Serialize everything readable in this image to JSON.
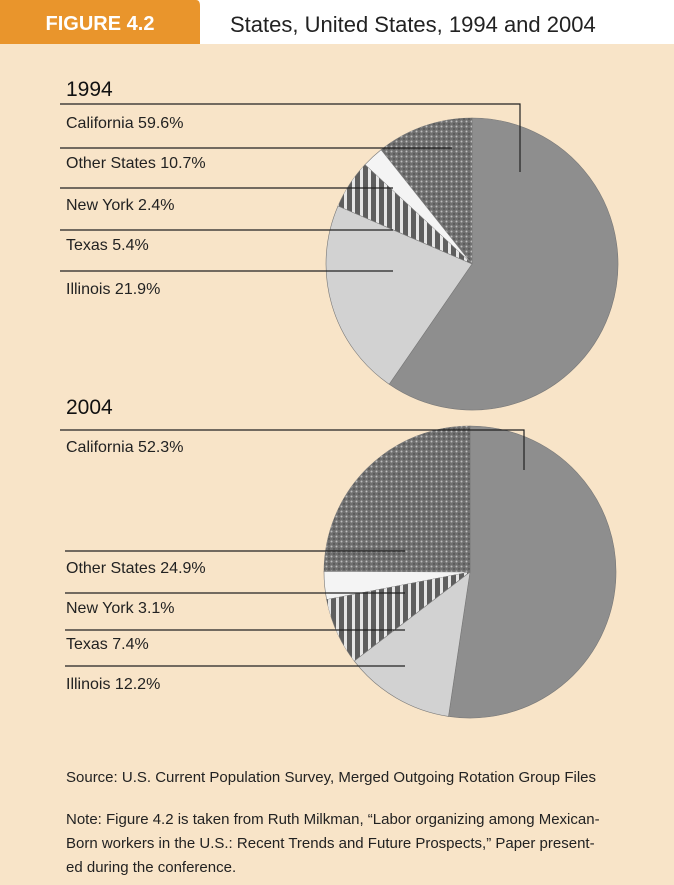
{
  "figure_label": "FIGURE 4.2",
  "subtitle": "States, United States, 1994 and 2004",
  "chart_data": [
    {
      "type": "pie",
      "title": "1994",
      "categories": [
        "California",
        "Other States",
        "New York",
        "Texas",
        "Illinois"
      ],
      "values": [
        59.6,
        10.7,
        2.4,
        5.4,
        21.9
      ],
      "value_labels": [
        "59.6%",
        "10.7%",
        "2.4%",
        "5.4%",
        "21.9%"
      ],
      "colors": [
        "#8e8e8e",
        "#6f6f6f",
        "#f4f4f4",
        "#5e5e5e",
        "#d2d2d2"
      ]
    },
    {
      "type": "pie",
      "title": "2004",
      "categories": [
        "California",
        "Other States",
        "New York",
        "Texas",
        "Illinois"
      ],
      "values": [
        52.3,
        24.9,
        3.1,
        7.4,
        12.2
      ],
      "value_labels": [
        "52.3%",
        "24.9%",
        "3.1%",
        "7.4%",
        "12.2%"
      ],
      "colors": [
        "#8e8e8e",
        "#6f6f6f",
        "#f4f4f4",
        "#5e5e5e",
        "#d2d2d2"
      ]
    }
  ],
  "source": "Source: U.S. Current Population Survey, Merged Outgoing Rotation Group Files",
  "note": [
    "Note: Figure 4.2 is taken from Ruth Milkman, “Labor organizing among Mexican-",
    "Born workers in the U.S.: Recent Trends and Future Prospects,” Paper present-",
    "ed during the conference."
  ]
}
